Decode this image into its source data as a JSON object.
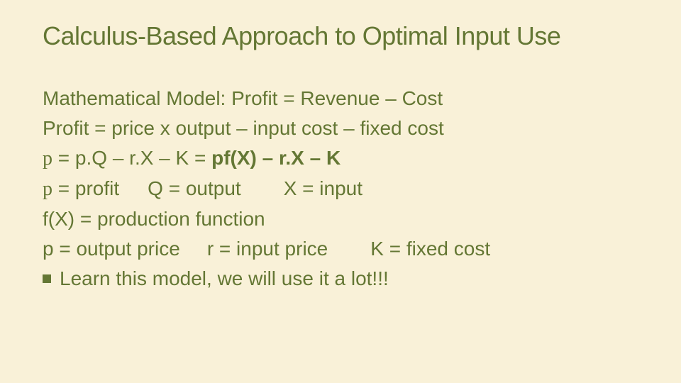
{
  "background_color": "#f9f1d8",
  "text_color": "#647734",
  "title_fontsize": 36,
  "body_fontsize": 28,
  "font_family": "Verdana",
  "title": "Calculus-Based Approach to Optimal Input Use",
  "lines": {
    "l1": "Mathematical Model: Profit = Revenue – Cost",
    "l2": "Profit = price x output – input cost – fixed cost",
    "l3_pi": "p",
    "l3_a": " = p.Q – r.X – K = ",
    "l3_b": "pf(X) – r.X – K",
    "l4_pi": "p",
    "l4_a": " = profit",
    "l4_b": "Q = output",
    "l4_c": "X = input",
    "l5": "f(X) = production function",
    "l6_a": "p = output price",
    "l6_b": "r = input price",
    "l6_c": "K = fixed cost",
    "l7": "Learn this model, we will use it a lot!!!"
  }
}
